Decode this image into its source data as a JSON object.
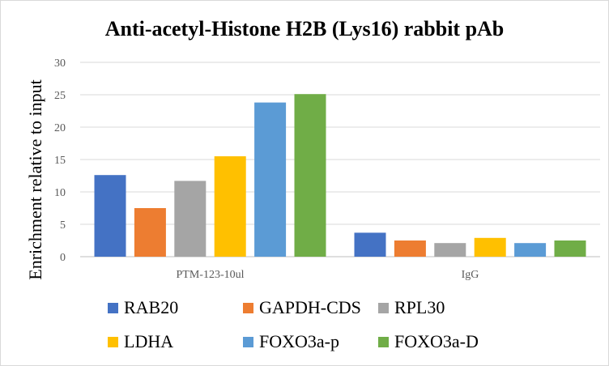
{
  "chart_data": {
    "type": "bar",
    "title": "Anti-acetyl-Histone H2B (Lys16) rabbit pAb",
    "xlabel": "",
    "ylabel": "Enrichment relative to input",
    "ylim": [
      0,
      30
    ],
    "yticks": [
      0,
      5,
      10,
      15,
      20,
      25,
      30
    ],
    "grid": true,
    "legend_position": "bottom",
    "categories": [
      "PTM-123-10ul",
      "IgG"
    ],
    "series": [
      {
        "name": "RAB20",
        "color": "#4472C4",
        "values": [
          12.6,
          3.7
        ]
      },
      {
        "name": "GAPDH-CDS",
        "color": "#ED7D31",
        "values": [
          7.5,
          2.5
        ]
      },
      {
        "name": "RPL30",
        "color": "#A5A5A5",
        "values": [
          11.7,
          2.1
        ]
      },
      {
        "name": "LDHA",
        "color": "#FFC000",
        "values": [
          15.5,
          2.9
        ]
      },
      {
        "name": "FOXO3a-p",
        "color": "#5B9BD5",
        "values": [
          23.8,
          2.1
        ]
      },
      {
        "name": "FOXO3a-D",
        "color": "#70AD47",
        "values": [
          25.1,
          2.5
        ]
      }
    ]
  }
}
